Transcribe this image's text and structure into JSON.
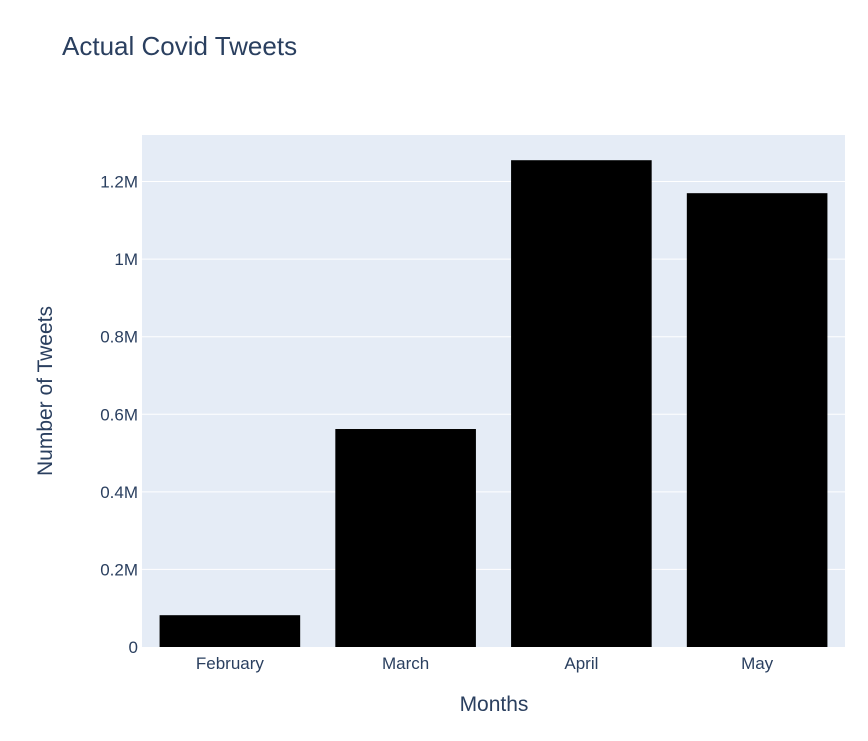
{
  "chart_data": {
    "type": "bar",
    "title": "Actual Covid Tweets",
    "xlabel": "Months",
    "ylabel": "Number of Tweets",
    "categories": [
      "February",
      "March",
      "April",
      "May"
    ],
    "values": [
      82000,
      562000,
      1255000,
      1170000
    ],
    "ylim": [
      0,
      1320000
    ],
    "yticks": [
      {
        "value": 0,
        "label": "0"
      },
      {
        "value": 200000,
        "label": "0.2M"
      },
      {
        "value": 400000,
        "label": "0.4M"
      },
      {
        "value": 600000,
        "label": "0.6M"
      },
      {
        "value": 800000,
        "label": "0.8M"
      },
      {
        "value": 1000000,
        "label": "1M"
      },
      {
        "value": 1200000,
        "label": "1.2M"
      }
    ],
    "grid": true,
    "colors": {
      "bar": "#000000",
      "plot_background": "#e5ecf6",
      "gridline": "#ffffff",
      "text": "#2a3f5f"
    }
  }
}
